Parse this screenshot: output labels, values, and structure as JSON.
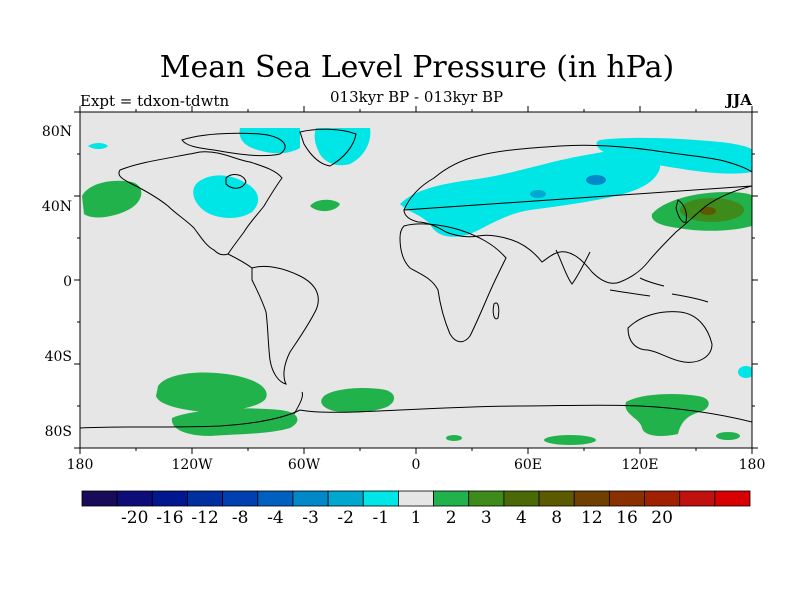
{
  "header": {
    "title": "Mean Sea Level Pressure (in hPa)",
    "experiment": "Expt = tdxon-tdwtn",
    "subtitle": "013kyr BP - 013kyr BP",
    "season": "JJA"
  },
  "map": {
    "background_color": "#e6e6e6",
    "x_ticks": [
      "180",
      "120W",
      "60W",
      "0",
      "60E",
      "120E",
      "180"
    ],
    "y_ticks": [
      "80N",
      "40N",
      "0",
      "40S",
      "80S"
    ],
    "anomaly_regions": [
      {
        "name": "north-pacific-positive",
        "level": "1 to 2",
        "color": "#22b24c"
      },
      {
        "name": "arctic-canada-negative",
        "level": "-1 to -2",
        "color": "#00e5e5"
      },
      {
        "name": "greenland-negative",
        "level": "-1 to -2",
        "color": "#00e5e5"
      },
      {
        "name": "north-america-negative",
        "level": "-1 to -2",
        "color": "#00e5e5"
      },
      {
        "name": "atlantic-positive",
        "level": "1 to 2",
        "color": "#22b24c"
      },
      {
        "name": "eurasia-negative",
        "level": "-1 to -2",
        "color": "#00e5e5"
      },
      {
        "name": "arctic-russia-negative",
        "level": "-1 to -2",
        "color": "#00e5e5"
      },
      {
        "name": "japan-positive",
        "level": "1 to 3",
        "color": "#22b24c"
      },
      {
        "name": "southern-pacific-positive",
        "level": "1 to 2",
        "color": "#22b24c"
      },
      {
        "name": "south-atlantic-positive",
        "level": "1 to 2",
        "color": "#22b24c"
      },
      {
        "name": "antarctic-indian-positive",
        "level": "1 to 2",
        "color": "#22b24c"
      },
      {
        "name": "south-pacific-small-negative",
        "level": "-1 to -2",
        "color": "#00e5e5"
      }
    ]
  },
  "colorbar": {
    "colors": [
      "#1a0a5a",
      "#0d0d7a",
      "#00178f",
      "#0030a0",
      "#0040b0",
      "#0060c0",
      "#0088c8",
      "#00a8d0",
      "#00e5e5",
      "#e6e6e6",
      "#22b24c",
      "#3e8a1a",
      "#4a6a08",
      "#5c5a00",
      "#704000",
      "#8a3000",
      "#a02000",
      "#c01010",
      "#d80000"
    ],
    "labels": [
      "-20",
      "-16",
      "-12",
      "-8",
      "-4",
      "-3",
      "-2",
      "-1",
      "1",
      "2",
      "3",
      "4",
      "8",
      "12",
      "16",
      "20"
    ]
  }
}
